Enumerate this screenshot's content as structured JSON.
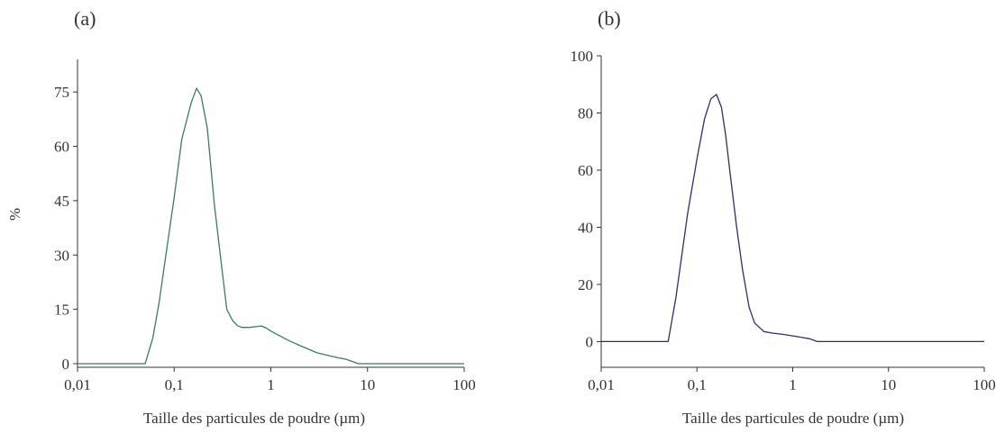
{
  "chart_data": [
    {
      "type": "line",
      "panel_label": "(a)",
      "title": "",
      "xlabel": "Taille des particules de poudre (µm)",
      "ylabel": "%",
      "x_scale": "log",
      "xlim": [
        0.01,
        100
      ],
      "ylim": [
        -1,
        84
      ],
      "x_ticks": [
        0.01,
        0.1,
        1,
        10,
        100
      ],
      "x_tick_labels": [
        "0,01",
        "0,1",
        "1",
        "10",
        "100"
      ],
      "y_ticks": [
        0,
        15,
        30,
        45,
        60,
        75
      ],
      "y_tick_labels": [
        "0",
        "15",
        "30",
        "45",
        "60",
        "75"
      ],
      "grid": false,
      "color": "#3a7d5a",
      "series": [
        {
          "x": [
            0.01,
            0.05,
            0.06,
            0.07,
            0.08,
            0.1,
            0.12,
            0.15,
            0.17,
            0.19,
            0.22,
            0.26,
            0.3,
            0.35,
            0.4,
            0.45,
            0.5,
            0.6,
            0.7,
            0.8,
            0.9,
            1,
            1.5,
            2,
            3,
            4,
            5,
            6,
            7,
            8,
            10,
            100
          ],
          "y": [
            0,
            0,
            7,
            17,
            28,
            46,
            62,
            72,
            76,
            74,
            65,
            44,
            30,
            15,
            12,
            10.5,
            10,
            10,
            10.2,
            10.4,
            9.8,
            9,
            6.5,
            5,
            3,
            2.2,
            1.6,
            1.2,
            0.6,
            0,
            0,
            0
          ]
        }
      ]
    },
    {
      "type": "line",
      "panel_label": "(b)",
      "title": "",
      "xlabel": "Taille des particules de poudre (µm)",
      "ylabel": "",
      "x_scale": "log",
      "xlim": [
        0.01,
        100
      ],
      "ylim": [
        -9,
        100
      ],
      "x_ticks": [
        0.01,
        0.1,
        1,
        10,
        100
      ],
      "x_tick_labels": [
        "0,01",
        "0,1",
        "1",
        "10",
        "100"
      ],
      "y_ticks": [
        0,
        20,
        40,
        60,
        80,
        100
      ],
      "y_tick_labels": [
        "0",
        "20",
        "40",
        "60",
        "80",
        "100"
      ],
      "grid": false,
      "color": "#2e2e6e",
      "series": [
        {
          "x": [
            0.01,
            0.05,
            0.06,
            0.07,
            0.08,
            0.1,
            0.12,
            0.14,
            0.16,
            0.18,
            0.2,
            0.22,
            0.26,
            0.3,
            0.35,
            0.4,
            0.5,
            0.6,
            0.8,
            1,
            1.5,
            1.8,
            10,
            100
          ],
          "y": [
            0,
            0,
            15,
            31,
            45,
            64,
            78,
            85,
            86.5,
            82,
            72,
            60,
            40,
            25,
            12,
            6.5,
            3.5,
            3,
            2.5,
            2,
            1,
            0,
            0,
            0
          ]
        }
      ]
    }
  ]
}
